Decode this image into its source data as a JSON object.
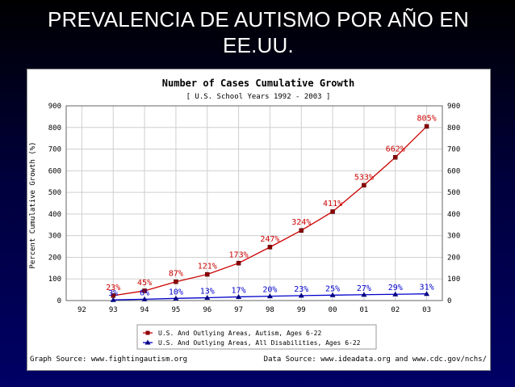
{
  "slide": {
    "title": "PREVALENCIA DE AUTISMO POR AÑO EN EE.UU."
  },
  "chart_data": {
    "type": "line",
    "title": "Number of Cases Cumulative Growth",
    "subtitle": "[ U.S. School Years 1992 - 2003 ]",
    "ylabel": "Percent Cumulative Growth (%)",
    "xlabel": "",
    "categories": [
      "92",
      "93",
      "94",
      "95",
      "96",
      "97",
      "98",
      "99",
      "00",
      "01",
      "02",
      "03"
    ],
    "ylim": [
      0,
      900
    ],
    "yticks": [
      0,
      100,
      200,
      300,
      400,
      500,
      600,
      700,
      800,
      900
    ],
    "grid": true,
    "series": [
      {
        "name": "U.S. And Outlying Areas, Autism, Ages 6-22",
        "color": "#cc0000",
        "marker": "square",
        "values": [
          null,
          23,
          45,
          87,
          121,
          173,
          247,
          324,
          411,
          533,
          662,
          805
        ],
        "labels": [
          null,
          "23%",
          "45%",
          "87%",
          "121%",
          "173%",
          "247%",
          "324%",
          "411%",
          "533%",
          "662%",
          "805%"
        ]
      },
      {
        "name": "U.S. And Outlying Areas, All Disabilities, Ages 6-22",
        "color": "#0000cc",
        "marker": "triangle",
        "values": [
          null,
          3,
          6,
          10,
          13,
          17,
          20,
          23,
          25,
          27,
          29,
          31
        ],
        "labels": [
          null,
          "3%",
          "6%",
          "10%",
          "13%",
          "17%",
          "20%",
          "23%",
          "25%",
          "27%",
          "29%",
          "31%"
        ]
      }
    ],
    "legend_position": "bottom",
    "footer_left": "Graph Source: www.fightingautism.org",
    "footer_right": "Data Source: www.ideadata.org and www.cdc.gov/nchs/"
  }
}
